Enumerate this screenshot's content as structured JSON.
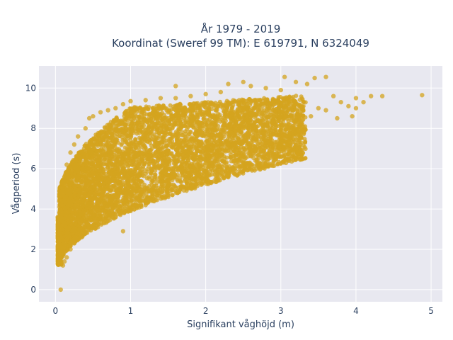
{
  "chart_data": {
    "type": "scatter",
    "title_line1": "År 1979 - 2019",
    "title_line2": "Koordinat (Sweref 99 TM): E 619791, N 6324049",
    "xlabel": "Signifikant våghöjd (m)",
    "ylabel": "Vågperiod (s)",
    "xlim": [
      -0.22,
      5.15
    ],
    "ylim": [
      -0.6,
      11.1
    ],
    "x_ticks": [
      0,
      1,
      2,
      3,
      4,
      5
    ],
    "y_ticks": [
      0,
      2,
      4,
      6,
      8,
      10
    ],
    "grid": true,
    "marker_color": "#d4a41f",
    "marker_opacity": 0.75,
    "background_color": "#e8e8f0",
    "series": [
      {
        "points": [
          [
            0.07,
            0.0
          ],
          [
            0.03,
            3.6
          ],
          [
            0.05,
            2.4
          ],
          [
            0.06,
            1.6
          ],
          [
            0.08,
            1.3
          ],
          [
            0.1,
            1.2
          ],
          [
            0.12,
            1.4
          ],
          [
            0.15,
            1.6
          ],
          [
            0.2,
            2.0
          ],
          [
            0.25,
            2.3
          ],
          [
            0.3,
            2.5
          ],
          [
            0.4,
            2.8
          ],
          [
            0.5,
            3.2
          ],
          [
            0.6,
            3.5
          ],
          [
            0.08,
            4.2
          ],
          [
            0.1,
            5.0
          ],
          [
            0.12,
            5.6
          ],
          [
            0.15,
            6.2
          ],
          [
            0.2,
            6.8
          ],
          [
            0.25,
            7.2
          ],
          [
            0.3,
            7.6
          ],
          [
            0.4,
            8.0
          ],
          [
            0.45,
            8.5
          ],
          [
            0.5,
            8.6
          ],
          [
            0.6,
            8.8
          ],
          [
            0.7,
            8.9
          ],
          [
            0.8,
            9.0
          ],
          [
            0.9,
            9.2
          ],
          [
            1.0,
            9.35
          ],
          [
            1.2,
            9.4
          ],
          [
            1.4,
            9.5
          ],
          [
            1.6,
            9.5
          ],
          [
            1.8,
            9.6
          ],
          [
            2.0,
            9.7
          ],
          [
            2.2,
            9.8
          ],
          [
            1.6,
            10.1
          ],
          [
            2.3,
            10.2
          ],
          [
            2.5,
            10.3
          ],
          [
            2.6,
            10.1
          ],
          [
            2.8,
            10.0
          ],
          [
            3.0,
            9.9
          ],
          [
            3.05,
            10.55
          ],
          [
            3.2,
            10.3
          ],
          [
            3.35,
            10.2
          ],
          [
            3.45,
            10.5
          ],
          [
            3.6,
            10.55
          ],
          [
            3.7,
            9.6
          ],
          [
            3.8,
            9.3
          ],
          [
            3.9,
            9.1
          ],
          [
            4.0,
            9.5
          ],
          [
            4.1,
            9.3
          ],
          [
            4.2,
            9.6
          ],
          [
            4.35,
            9.6
          ],
          [
            4.88,
            9.65
          ],
          [
            4.0,
            9.0
          ],
          [
            3.95,
            8.6
          ],
          [
            3.75,
            8.5
          ],
          [
            3.6,
            8.9
          ],
          [
            3.4,
            8.6
          ],
          [
            3.0,
            7.8
          ],
          [
            2.8,
            7.5
          ],
          [
            2.5,
            7.0
          ],
          [
            2.2,
            6.5
          ],
          [
            2.0,
            6.0
          ],
          [
            1.8,
            5.7
          ],
          [
            1.5,
            5.0
          ],
          [
            1.3,
            4.4
          ],
          [
            1.2,
            4.2
          ],
          [
            1.0,
            3.9
          ],
          [
            0.8,
            3.6
          ],
          [
            0.7,
            3.4
          ],
          [
            0.9,
            2.9
          ],
          [
            0.25,
            3.0
          ],
          [
            0.35,
            2.6
          ],
          [
            0.15,
            2.8
          ],
          [
            0.2,
            3.4
          ],
          [
            0.3,
            4.4
          ],
          [
            0.4,
            5.4
          ],
          [
            0.5,
            6.0
          ],
          [
            0.6,
            6.6
          ],
          [
            0.7,
            7.1
          ],
          [
            0.8,
            7.4
          ],
          [
            0.9,
            7.8
          ],
          [
            1.0,
            8.1
          ],
          [
            1.1,
            8.3
          ],
          [
            1.2,
            8.4
          ],
          [
            1.3,
            8.6
          ],
          [
            1.4,
            8.7
          ],
          [
            1.5,
            8.8
          ],
          [
            1.6,
            8.9
          ],
          [
            1.7,
            8.9
          ],
          [
            1.8,
            9.0
          ],
          [
            1.9,
            9.1
          ],
          [
            2.0,
            9.2
          ],
          [
            2.1,
            9.2
          ],
          [
            2.3,
            9.3
          ],
          [
            2.5,
            9.4
          ],
          [
            2.7,
            9.4
          ],
          [
            2.9,
            9.3
          ],
          [
            3.1,
            9.2
          ],
          [
            3.3,
            9.1
          ],
          [
            3.5,
            9.0
          ],
          [
            1.0,
            6.5
          ],
          [
            1.2,
            6.8
          ],
          [
            1.4,
            7.0
          ],
          [
            1.6,
            7.2
          ],
          [
            1.8,
            7.4
          ],
          [
            2.0,
            7.6
          ],
          [
            2.2,
            7.8
          ],
          [
            2.4,
            8.0
          ],
          [
            2.6,
            8.1
          ],
          [
            2.8,
            8.2
          ],
          [
            3.0,
            8.3
          ],
          [
            3.2,
            8.4
          ],
          [
            0.5,
            4.5
          ],
          [
            0.6,
            5.0
          ],
          [
            0.7,
            5.4
          ],
          [
            0.8,
            5.8
          ],
          [
            0.9,
            6.0
          ],
          [
            1.1,
            6.2
          ],
          [
            1.3,
            6.4
          ],
          [
            1.5,
            6.5
          ],
          [
            1.7,
            6.7
          ],
          [
            1.9,
            6.9
          ],
          [
            2.1,
            7.0
          ],
          [
            2.3,
            7.2
          ],
          [
            2.5,
            7.4
          ],
          [
            2.7,
            7.6
          ],
          [
            2.9,
            7.7
          ]
        ]
      }
    ]
  }
}
